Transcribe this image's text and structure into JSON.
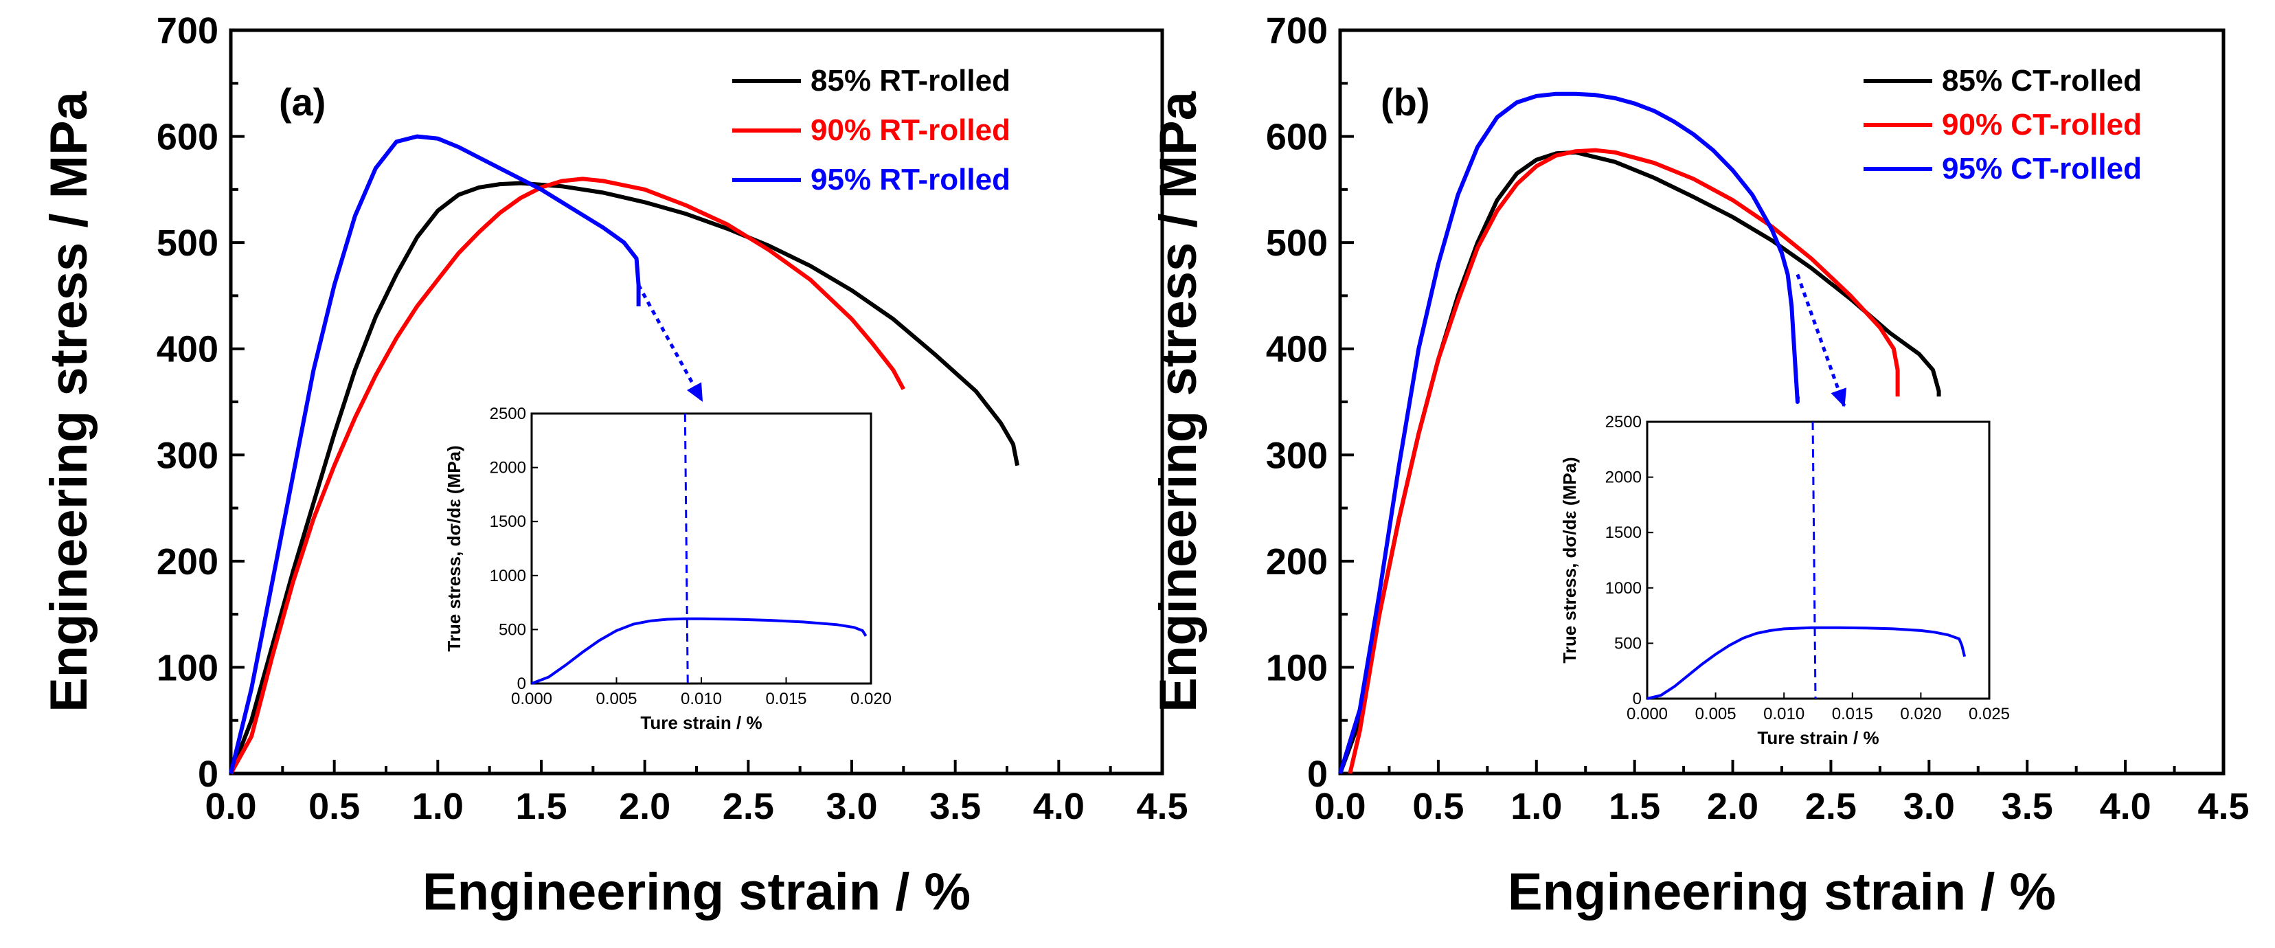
{
  "chart_data": [
    {
      "type": "line",
      "panel_label": "(a)",
      "xlabel": "Engineering strain / %",
      "ylabel": "Engineering stress / MPa",
      "xlim": [
        0,
        4.5
      ],
      "ylim": [
        0,
        700
      ],
      "xticks": [
        "0.0",
        "0.5",
        "1.0",
        "1.5",
        "2.0",
        "2.5",
        "3.0",
        "3.5",
        "4.0",
        "4.5"
      ],
      "yticks": [
        "0",
        "100",
        "200",
        "300",
        "400",
        "500",
        "600",
        "700"
      ],
      "legend_position": "top-right",
      "series": [
        {
          "name": "85% RT-rolled",
          "color": "#000000",
          "x": [
            0,
            0.1,
            0.2,
            0.3,
            0.4,
            0.5,
            0.6,
            0.7,
            0.8,
            0.9,
            1.0,
            1.1,
            1.2,
            1.3,
            1.4,
            1.6,
            1.8,
            2.0,
            2.2,
            2.4,
            2.6,
            2.8,
            3.0,
            3.2,
            3.4,
            3.6,
            3.72,
            3.78,
            3.8
          ],
          "y": [
            0,
            50,
            120,
            190,
            255,
            320,
            380,
            430,
            470,
            505,
            530,
            545,
            552,
            555,
            556,
            553,
            547,
            538,
            527,
            513,
            497,
            478,
            455,
            428,
            395,
            360,
            330,
            310,
            290
          ]
        },
        {
          "name": "90% RT-rolled",
          "color": "#ff0000",
          "x": [
            0,
            0.1,
            0.2,
            0.3,
            0.4,
            0.5,
            0.6,
            0.7,
            0.8,
            0.9,
            1.0,
            1.1,
            1.2,
            1.3,
            1.4,
            1.5,
            1.6,
            1.7,
            1.8,
            2.0,
            2.2,
            2.4,
            2.6,
            2.8,
            3.0,
            3.1,
            3.2,
            3.25
          ],
          "y": [
            0,
            35,
            110,
            180,
            240,
            290,
            335,
            375,
            410,
            440,
            465,
            490,
            510,
            528,
            542,
            552,
            558,
            560,
            558,
            550,
            535,
            517,
            493,
            465,
            428,
            405,
            380,
            362
          ]
        },
        {
          "name": "95% RT-rolled",
          "color": "#0000ff",
          "x": [
            0,
            0.05,
            0.1,
            0.2,
            0.3,
            0.4,
            0.5,
            0.6,
            0.7,
            0.8,
            0.9,
            1.0,
            1.1,
            1.2,
            1.3,
            1.4,
            1.5,
            1.6,
            1.7,
            1.8,
            1.9,
            1.96,
            1.97,
            1.97
          ],
          "y": [
            0,
            40,
            80,
            180,
            280,
            380,
            460,
            525,
            570,
            595,
            600,
            598,
            590,
            580,
            570,
            560,
            550,
            538,
            526,
            514,
            500,
            485,
            460,
            440
          ]
        }
      ],
      "inset": {
        "xlabel": "Ture strain / %",
        "ylabel": "True stress, dσ/dε (MPa)",
        "xlim": [
          0,
          0.02
        ],
        "ylim": [
          0,
          2500
        ],
        "xticks": [
          "0.000",
          "0.005",
          "0.010",
          "0.015",
          "0.020"
        ],
        "yticks": [
          "0",
          "500",
          "1000",
          "1500",
          "2000",
          "2500"
        ],
        "series": {
          "color": "#0000ff",
          "x": [
            0,
            0.001,
            0.002,
            0.003,
            0.004,
            0.005,
            0.006,
            0.007,
            0.008,
            0.009,
            0.01,
            0.012,
            0.014,
            0.016,
            0.018,
            0.019,
            0.0195,
            0.0197
          ],
          "y": [
            0,
            60,
            170,
            290,
            400,
            490,
            550,
            580,
            595,
            600,
            600,
            595,
            585,
            570,
            545,
            520,
            490,
            440
          ]
        },
        "marker_x": 0.0092
      }
    },
    {
      "type": "line",
      "panel_label": "(b)",
      "xlabel": "Engineering strain / %",
      "ylabel": "Engineering stress / MPa",
      "xlim": [
        0,
        4.5
      ],
      "ylim": [
        0,
        700
      ],
      "xticks": [
        "0.0",
        "0.5",
        "1.0",
        "1.5",
        "2.0",
        "2.5",
        "3.0",
        "3.5",
        "4.0",
        "4.5"
      ],
      "yticks": [
        "0",
        "100",
        "200",
        "300",
        "400",
        "500",
        "600",
        "700"
      ],
      "legend_position": "top-right",
      "series": [
        {
          "name": "85% CT-rolled",
          "color": "#000000",
          "x": [
            0,
            0.1,
            0.2,
            0.3,
            0.4,
            0.5,
            0.6,
            0.7,
            0.8,
            0.9,
            1.0,
            1.1,
            1.2,
            1.4,
            1.6,
            1.8,
            2.0,
            2.2,
            2.4,
            2.6,
            2.8,
            2.95,
            3.02,
            3.05,
            3.05
          ],
          "y": [
            0,
            50,
            150,
            240,
            320,
            390,
            450,
            500,
            540,
            565,
            578,
            584,
            585,
            576,
            561,
            543,
            524,
            502,
            476,
            447,
            415,
            395,
            380,
            360,
            355
          ]
        },
        {
          "name": "90% CT-rolled",
          "color": "#ff0000",
          "x": [
            0.05,
            0.1,
            0.2,
            0.3,
            0.4,
            0.5,
            0.6,
            0.7,
            0.8,
            0.9,
            1.0,
            1.1,
            1.2,
            1.3,
            1.4,
            1.6,
            1.8,
            2.0,
            2.2,
            2.4,
            2.6,
            2.75,
            2.82,
            2.84,
            2.84
          ],
          "y": [
            0,
            40,
            150,
            240,
            320,
            390,
            445,
            495,
            530,
            555,
            572,
            582,
            586,
            587,
            585,
            575,
            560,
            540,
            515,
            485,
            450,
            420,
            400,
            380,
            355
          ]
        },
        {
          "name": "95% CT-rolled",
          "color": "#0000ff",
          "x": [
            0,
            0.1,
            0.2,
            0.3,
            0.4,
            0.5,
            0.6,
            0.7,
            0.8,
            0.9,
            1.0,
            1.1,
            1.2,
            1.3,
            1.4,
            1.5,
            1.6,
            1.7,
            1.8,
            1.9,
            2.0,
            2.1,
            2.2,
            2.25,
            2.28,
            2.3,
            2.31,
            2.32,
            2.33,
            2.33
          ],
          "y": [
            0,
            60,
            170,
            290,
            400,
            480,
            545,
            590,
            618,
            632,
            638,
            640,
            640,
            639,
            636,
            631,
            624,
            614,
            602,
            587,
            568,
            545,
            512,
            490,
            470,
            440,
            410,
            380,
            350,
            355
          ]
        }
      ],
      "inset": {
        "xlabel": "Ture strain / %",
        "ylabel": "True stress, dσ/dε (MPa)",
        "xlim": [
          0,
          0.025
        ],
        "ylim": [
          0,
          2500
        ],
        "xticks": [
          "0.000",
          "0.005",
          "0.010",
          "0.015",
          "0.020",
          "0.025"
        ],
        "yticks": [
          "0",
          "500",
          "1000",
          "1500",
          "2000",
          "2500"
        ],
        "series": {
          "color": "#0000ff",
          "x": [
            0,
            0.001,
            0.002,
            0.003,
            0.004,
            0.005,
            0.006,
            0.007,
            0.008,
            0.009,
            0.01,
            0.012,
            0.014,
            0.016,
            0.018,
            0.02,
            0.021,
            0.022,
            0.0228,
            0.023,
            0.0232
          ],
          "y": [
            0,
            30,
            110,
            210,
            310,
            400,
            480,
            545,
            590,
            615,
            630,
            640,
            640,
            638,
            630,
            615,
            600,
            575,
            540,
            480,
            380
          ]
        },
        "marker_x": 0.0123
      }
    }
  ]
}
